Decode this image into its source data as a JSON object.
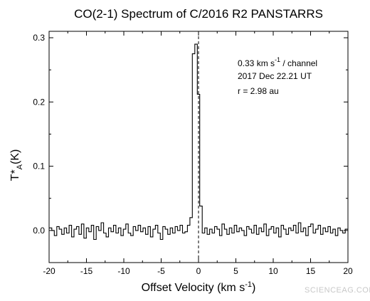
{
  "chart_data": {
    "type": "line",
    "step": true,
    "title": "CO(2-1) Spectrum of C/2016 R2 PANSTARRS",
    "xlabel": "Offset Velocity (km s",
    "xlabel_sup": "-1",
    "xlabel_tail": ")",
    "ylabel": "T*",
    "ylabel_sub": "A",
    "ylabel_tail": "(K)",
    "xlim": [
      -20,
      20
    ],
    "ylim": [
      -0.05,
      0.31
    ],
    "x_ticks": [
      -20,
      -15,
      -10,
      -5,
      0,
      5,
      10,
      15,
      20
    ],
    "x_tick_labels": [
      "-20",
      "-15",
      "-10",
      "-5",
      "0",
      "5",
      "10",
      "15",
      "20"
    ],
    "y_ticks": [
      0.0,
      0.1,
      0.2,
      0.3
    ],
    "y_tick_labels": [
      "0.0",
      "0.1",
      "0.2",
      "0.3"
    ],
    "grid": false,
    "reference_line": {
      "x": 0,
      "style": "dashed"
    },
    "annotations": {
      "line1_pre": "0.33 km s",
      "line1_sup": "-1",
      "line1_post": " / channel",
      "line2": "2017 Dec 22.21 UT",
      "line3": "r = 2.98 au"
    },
    "watermark": "SCIENCEAG.COM",
    "series": [
      {
        "channel_width": 0.33,
        "x": [
          -19.8,
          -19.47,
          -19.14,
          -18.81,
          -18.48,
          -18.15,
          -17.82,
          -17.49,
          -17.16,
          -16.83,
          -16.5,
          -16.17,
          -15.84,
          -15.51,
          -15.18,
          -14.85,
          -14.52,
          -14.19,
          -13.86,
          -13.53,
          -13.2,
          -12.87,
          -12.54,
          -12.21,
          -11.88,
          -11.55,
          -11.22,
          -10.89,
          -10.56,
          -10.23,
          -9.9,
          -9.57,
          -9.24,
          -8.91,
          -8.58,
          -8.25,
          -7.92,
          -7.59,
          -7.26,
          -6.93,
          -6.6,
          -6.27,
          -5.94,
          -5.61,
          -5.28,
          -4.95,
          -4.62,
          -4.29,
          -3.96,
          -3.63,
          -3.3,
          -2.97,
          -2.64,
          -2.31,
          -1.98,
          -1.65,
          -1.32,
          -0.99,
          -0.66,
          -0.33,
          0.0,
          0.33,
          0.66,
          0.99,
          1.32,
          1.65,
          1.98,
          2.31,
          2.64,
          2.97,
          3.3,
          3.63,
          3.96,
          4.29,
          4.62,
          4.95,
          5.28,
          5.61,
          5.94,
          6.27,
          6.6,
          6.93,
          7.26,
          7.59,
          7.92,
          8.25,
          8.58,
          8.91,
          9.24,
          9.57,
          9.9,
          10.23,
          10.56,
          10.89,
          11.22,
          11.55,
          11.88,
          12.21,
          12.54,
          12.87,
          13.2,
          13.53,
          13.86,
          14.19,
          14.52,
          14.85,
          15.18,
          15.51,
          15.84,
          16.17,
          16.5,
          16.83,
          17.16,
          17.49,
          17.82,
          18.15,
          18.48,
          18.81,
          19.14,
          19.47,
          19.8
        ],
        "y": [
          0.004,
          0.0,
          -0.008,
          0.006,
          0.002,
          -0.006,
          0.004,
          -0.004,
          0.008,
          -0.01,
          0.002,
          0.006,
          -0.006,
          0.01,
          -0.012,
          0.004,
          -0.002,
          0.008,
          -0.014,
          0.006,
          0.0,
          0.012,
          -0.004,
          -0.01,
          0.004,
          -0.002,
          0.008,
          -0.004,
          0.004,
          -0.008,
          0.002,
          0.01,
          -0.004,
          -0.008,
          0.006,
          0.0,
          0.008,
          -0.002,
          0.004,
          -0.006,
          0.006,
          -0.01,
          0.002,
          0.008,
          -0.004,
          -0.014,
          0.006,
          0.002,
          -0.006,
          0.004,
          -0.004,
          0.006,
          0.0,
          0.008,
          -0.004,
          -0.002,
          0.008,
          0.02,
          0.275,
          0.29,
          0.212,
          0.038,
          -0.004,
          0.004,
          -0.006,
          0.002,
          -0.004,
          0.006,
          0.002,
          -0.008,
          0.01,
          0.002,
          -0.006,
          0.004,
          -0.004,
          0.008,
          -0.002,
          0.004,
          0.0,
          -0.008,
          0.006,
          0.002,
          -0.004,
          0.008,
          -0.006,
          0.004,
          -0.002,
          0.01,
          -0.008,
          0.002,
          0.006,
          -0.004,
          0.004,
          -0.01,
          0.008,
          0.002,
          -0.006,
          0.004,
          0.0,
          0.008,
          -0.004,
          0.012,
          -0.002,
          0.004,
          -0.008,
          0.006,
          0.01,
          -0.004,
          0.002,
          0.008,
          -0.006,
          0.004,
          -0.002,
          0.006,
          -0.004,
          0.002,
          -0.008,
          0.004,
          0.0,
          -0.004,
          0.002
        ]
      }
    ]
  }
}
